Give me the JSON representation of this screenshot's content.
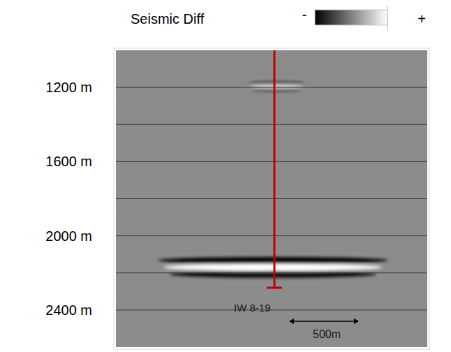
{
  "chart_data": {
    "type": "seismic_section",
    "ylim": [
      1000,
      2600
    ],
    "yticks": [
      {
        "value": 1200,
        "label": "1200 m"
      },
      {
        "value": 1600,
        "label": "1600 m"
      },
      {
        "value": 2000,
        "label": "2000 m"
      },
      {
        "value": 2400,
        "label": "2400 m"
      }
    ],
    "grid_lines": [
      1200,
      1400,
      1600,
      1800,
      2000,
      2200,
      2400
    ],
    "grid": true,
    "xlim": [
      0,
      2230
    ],
    "tick_labels": "y",
    "colorbar": {
      "label": "Seismic Diff",
      "min_label": "-",
      "max_label": "+",
      "colors": [
        "#000000",
        "#ffffff"
      ]
    },
    "well": {
      "name": "IW 8-19",
      "x": 1135,
      "bottom": 2280,
      "color": "#c00000"
    },
    "events": [
      {
        "depth": 2170,
        "xlim": [
          300,
          1950
        ]
      },
      {
        "depth": 1195,
        "xlim": [
          950,
          1350
        ]
      }
    ],
    "scale_bar": {
      "length": 500,
      "label": "500m"
    }
  }
}
